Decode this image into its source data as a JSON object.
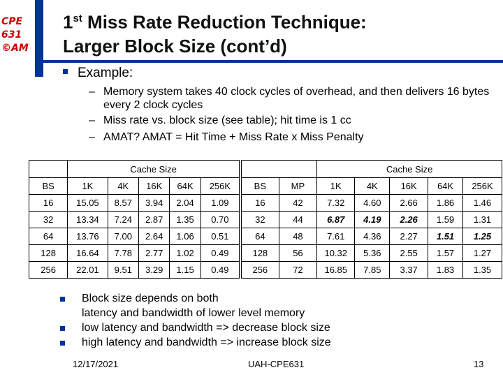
{
  "logo": {
    "line1": "CPE",
    "line2": "631",
    "line3": "©AM"
  },
  "title": {
    "line1_pre": "1",
    "line1_sup": "st",
    "line1_post": " Miss Rate Reduction Technique:",
    "line2": "Larger Block Size (cont’d)"
  },
  "example": {
    "label": "Example:"
  },
  "sub_bullets": [
    {
      "dash": "–",
      "text": "Memory system takes 40 clock cycles of overhead, and then delivers 16 bytes every 2 clock cycles"
    },
    {
      "dash": "–",
      "text": "Miss rate vs. block size (see table); hit time is 1 cc"
    },
    {
      "dash": "–",
      "text": "AMAT? AMAT = Hit Time + Miss Rate x Miss Penalty"
    }
  ],
  "left_table": {
    "group_header": "Cache Size",
    "columns": [
      "BS",
      "1K",
      "4K",
      "16K",
      "64K",
      "256K"
    ],
    "rows": [
      [
        "16",
        "15.05",
        "8.57",
        "3.94",
        "2.04",
        "1.09"
      ],
      [
        "32",
        "13.34",
        "7.24",
        "2.87",
        "1.35",
        "0.70"
      ],
      [
        "64",
        "13.76",
        "7.00",
        "2.64",
        "1.06",
        "0.51"
      ],
      [
        "128",
        "16.64",
        "7.78",
        "2.77",
        "1.02",
        "0.49"
      ],
      [
        "256",
        "22.01",
        "9.51",
        "3.29",
        "1.15",
        "0.49"
      ]
    ]
  },
  "right_table": {
    "group_header": "Cache Size",
    "columns": [
      "BS",
      "MP",
      "1K",
      "4K",
      "16K",
      "64K",
      "256K"
    ],
    "rows": [
      [
        "16",
        "42",
        "7.32",
        "4.60",
        "2.66",
        "1.86",
        "1.46"
      ],
      [
        "32",
        "44",
        "6.87",
        "4.19",
        "2.26",
        "1.59",
        "1.31"
      ],
      [
        "64",
        "48",
        "7.61",
        "4.36",
        "2.27",
        "1.51",
        "1.25"
      ],
      [
        "128",
        "56",
        "10.32",
        "5.36",
        "2.55",
        "1.57",
        "1.27"
      ],
      [
        "256",
        "72",
        "16.85",
        "7.85",
        "3.37",
        "1.83",
        "1.35"
      ]
    ]
  },
  "notes": [
    {
      "text1": "Block size depends on both",
      "text2": "latency and bandwidth of lower level memory"
    },
    {
      "text1": "low latency and bandwidth => decrease block size"
    },
    {
      "text1": "high latency and bandwidth => increase block size"
    }
  ],
  "footer": {
    "date": "12/17/2021",
    "center": "UAH-CPE631",
    "page": "13"
  },
  "colors": {
    "accent": "#003399",
    "logo": "#cc0000"
  }
}
